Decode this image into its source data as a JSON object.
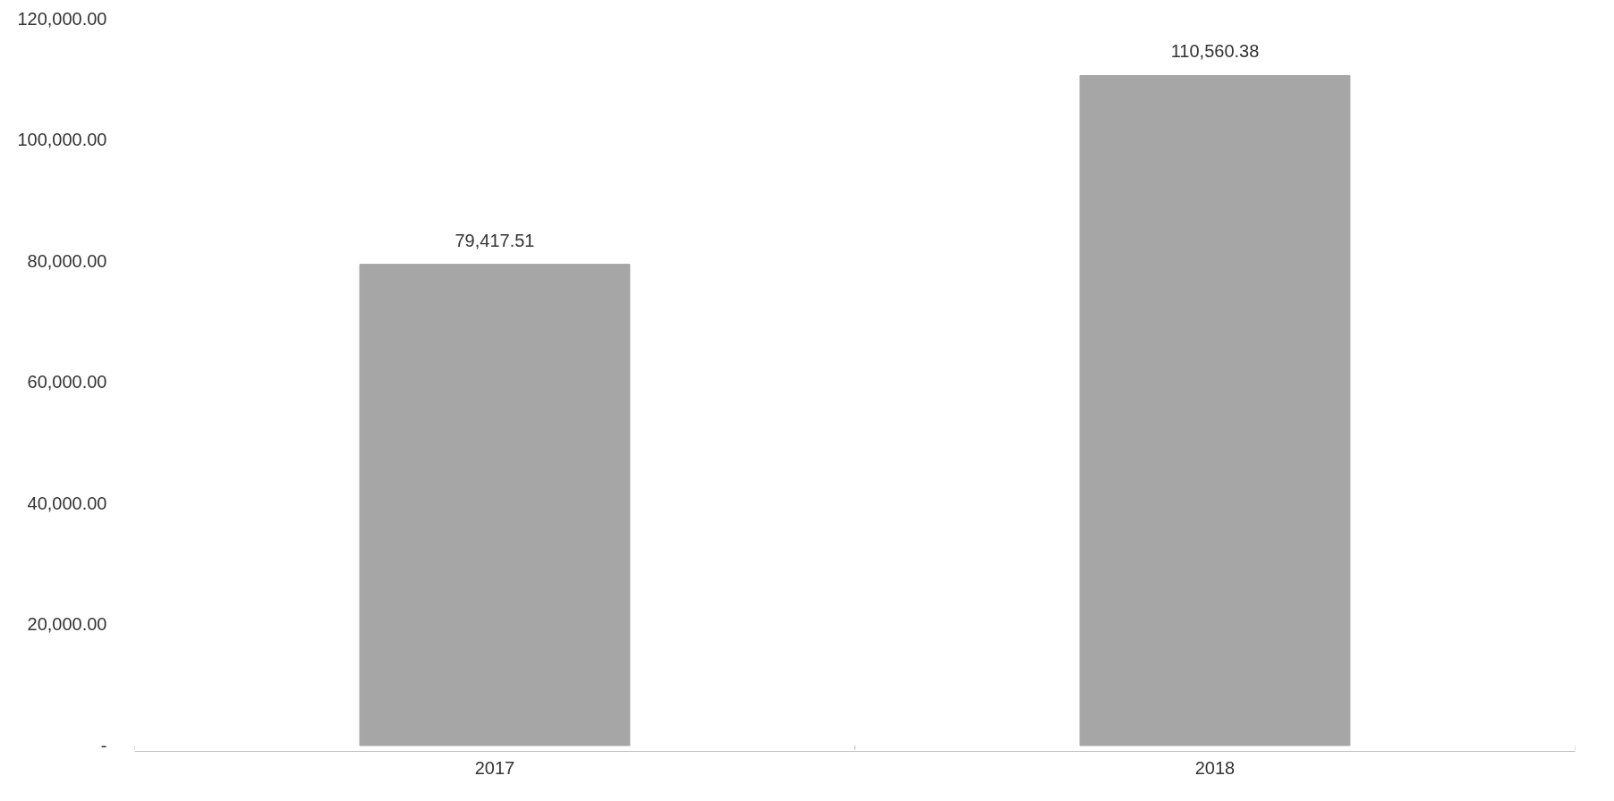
{
  "chart_data": {
    "type": "bar",
    "categories": [
      "2017",
      "2018"
    ],
    "values": [
      79417.51,
      110560.38
    ],
    "color": "#a6a6a6",
    "value_labels": [
      "79,417.51",
      "110,560.38"
    ],
    "ylim": [
      0,
      120000
    ],
    "yticks": [
      {
        "value": 0,
        "label": "-"
      },
      {
        "value": 20000,
        "label": "20,000.00"
      },
      {
        "value": 40000,
        "label": "40,000.00"
      },
      {
        "value": 60000,
        "label": "60,000.00"
      },
      {
        "value": 80000,
        "label": "80,000.00"
      },
      {
        "value": 100000,
        "label": "100,000.00"
      },
      {
        "value": 120000,
        "label": "120,000.00"
      }
    ],
    "grid": false
  }
}
